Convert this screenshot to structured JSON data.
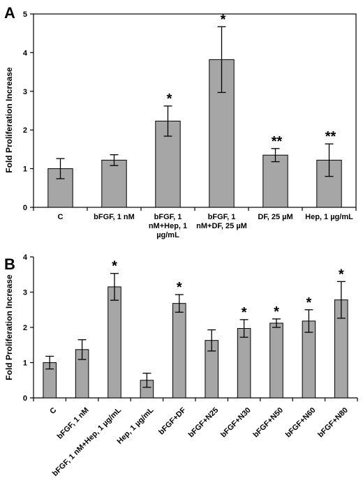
{
  "chart_data": [
    {
      "panel": "A",
      "type": "bar",
      "ylabel": "Fold Proliferation Increase",
      "ylim": [
        0,
        5
      ],
      "yticks": [
        "0",
        "1",
        "2",
        "3",
        "4",
        "5"
      ],
      "categories": [
        [
          "C"
        ],
        [
          "bFGF, 1 nM"
        ],
        [
          "bFGF, 1",
          "nM+Hep, 1",
          "µg/mL"
        ],
        [
          "bFGF, 1",
          "nM+DF, 25 µM"
        ],
        [
          "DF, 25 µM"
        ],
        [
          "Hep, 1 µg/mL"
        ]
      ],
      "values": [
        1.0,
        1.22,
        2.23,
        3.82,
        1.35,
        1.22
      ],
      "errors": [
        0.26,
        0.14,
        0.39,
        0.85,
        0.17,
        0.42
      ],
      "significance": [
        "",
        "",
        "*",
        "*",
        "**",
        "**"
      ],
      "bar_color": "#a6a6a6"
    },
    {
      "panel": "B",
      "type": "bar",
      "ylabel": "Fold Proliferation Increase",
      "ylim": [
        0,
        4
      ],
      "yticks": [
        "0",
        "1",
        "2",
        "3",
        "4"
      ],
      "categories": [
        "C",
        "bFGF, 1 nM",
        "bFGF, 1 nM+Hep, 1 µg/mL",
        "Hep, 1 µg/mL",
        "bFGF+DF",
        "bFGF+N25",
        "bFGF+N30",
        "bFGF+N50",
        "bFGF+N60",
        "bFGF+N80"
      ],
      "values": [
        1.0,
        1.37,
        3.15,
        0.5,
        2.68,
        1.63,
        1.97,
        2.12,
        2.18,
        2.78
      ],
      "errors": [
        0.18,
        0.28,
        0.38,
        0.2,
        0.25,
        0.3,
        0.25,
        0.12,
        0.32,
        0.52
      ],
      "significance": [
        "",
        "",
        "*",
        "",
        "*",
        "",
        "*",
        "*",
        "*",
        "*"
      ],
      "bar_color": "#a6a6a6"
    }
  ]
}
